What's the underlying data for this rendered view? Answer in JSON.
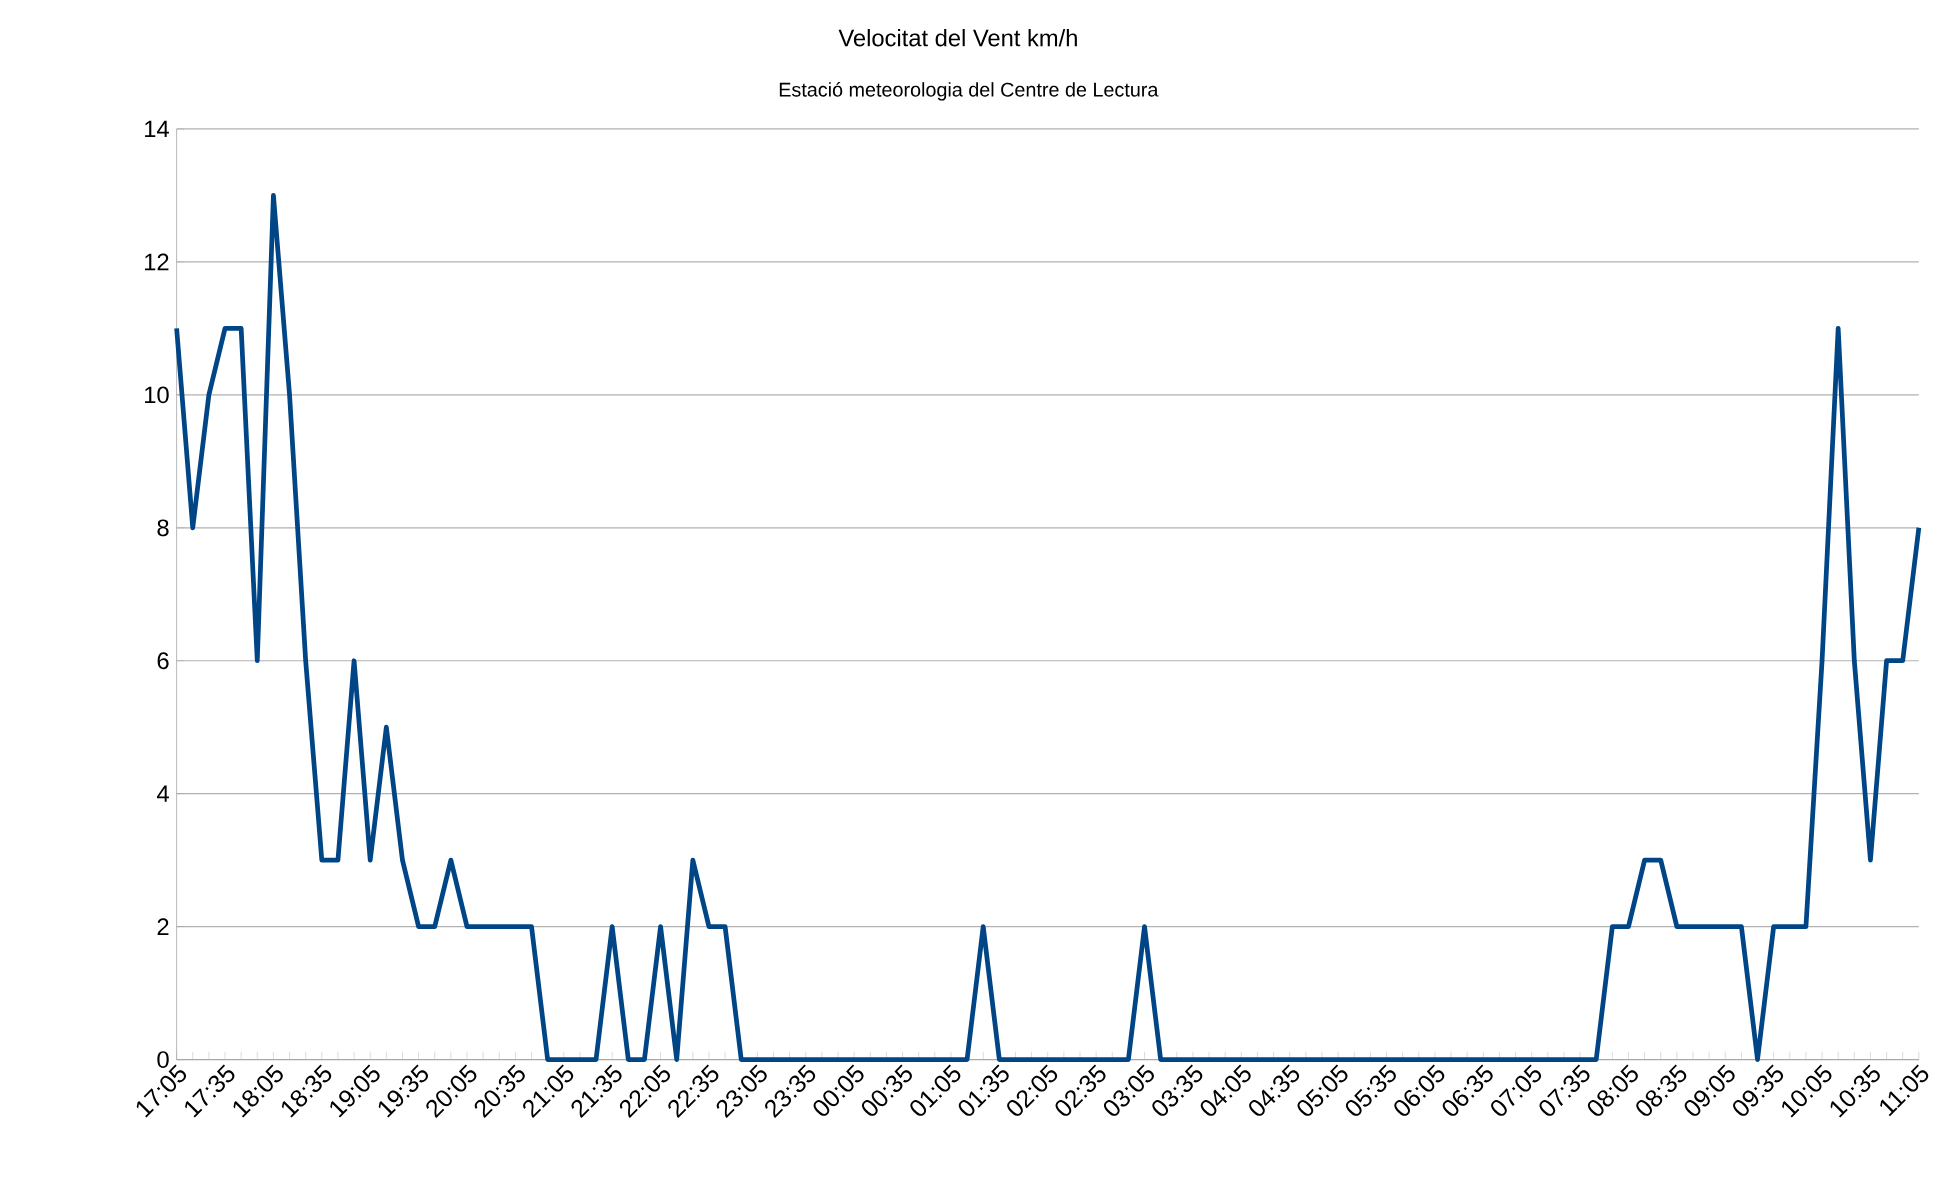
{
  "chart_data": {
    "type": "line",
    "title": "Velocitat del Vent km/h",
    "subtitle": "Estació meteorologia del Centre de Lectura",
    "categories": [
      "17:05",
      null,
      null,
      "17:35",
      null,
      null,
      "18:05",
      null,
      null,
      "18:35",
      null,
      null,
      "19:05",
      null,
      null,
      "19:35",
      null,
      null,
      "20:05",
      null,
      null,
      "20:35",
      null,
      null,
      "21:05",
      null,
      null,
      "21:35",
      null,
      null,
      "22:05",
      null,
      null,
      "22:35",
      null,
      null,
      "23:05",
      null,
      null,
      "23:35",
      null,
      null,
      "00:05",
      null,
      null,
      "00:35",
      null,
      null,
      "01:05",
      null,
      null,
      "01:35",
      null,
      null,
      "02:05",
      null,
      null,
      "02:35",
      null,
      null,
      "03:05",
      null,
      null,
      "03:35",
      null,
      null,
      "04:05",
      null,
      null,
      "04:35",
      null,
      null,
      "05:05",
      null,
      null,
      "05:35",
      null,
      null,
      "06:05",
      null,
      null,
      "06:35",
      null,
      null,
      "07:05",
      null,
      null,
      "07:35",
      null,
      null,
      "08:05",
      null,
      null,
      "08:35",
      null,
      null,
      "09:05",
      null,
      null,
      "09:35",
      null,
      null,
      "10:05",
      null,
      null,
      "10:35",
      null,
      null,
      "11:05"
    ],
    "series": [
      {
        "color": "#004586",
        "values": [
          11,
          8,
          10,
          11,
          11,
          6,
          13,
          10,
          6,
          3,
          3,
          6,
          3,
          5,
          3,
          2,
          2,
          3,
          2,
          2,
          2,
          2,
          2,
          0,
          0,
          0,
          0,
          2,
          0,
          0,
          2,
          0,
          3,
          2,
          2,
          0,
          0,
          0,
          0,
          0,
          0,
          0,
          0,
          0,
          0,
          0,
          0,
          0,
          0,
          0,
          2,
          0,
          0,
          0,
          0,
          0,
          0,
          0,
          0,
          0,
          2,
          0,
          0,
          0,
          0,
          0,
          0,
          0,
          0,
          0,
          0,
          0,
          0,
          0,
          0,
          0,
          0,
          0,
          0,
          0,
          0,
          0,
          0,
          0,
          0,
          0,
          0,
          0,
          0,
          2,
          2,
          3,
          3,
          2,
          2,
          2,
          2,
          2,
          0,
          2,
          2,
          2,
          6,
          11,
          6,
          3,
          6,
          6,
          8
        ]
      }
    ],
    "ylim": [
      0,
      14
    ],
    "yticks": [
      0,
      2,
      4,
      6,
      8,
      10,
      12,
      14
    ],
    "grid": "y",
    "marker": "none",
    "line_style": "solid"
  }
}
